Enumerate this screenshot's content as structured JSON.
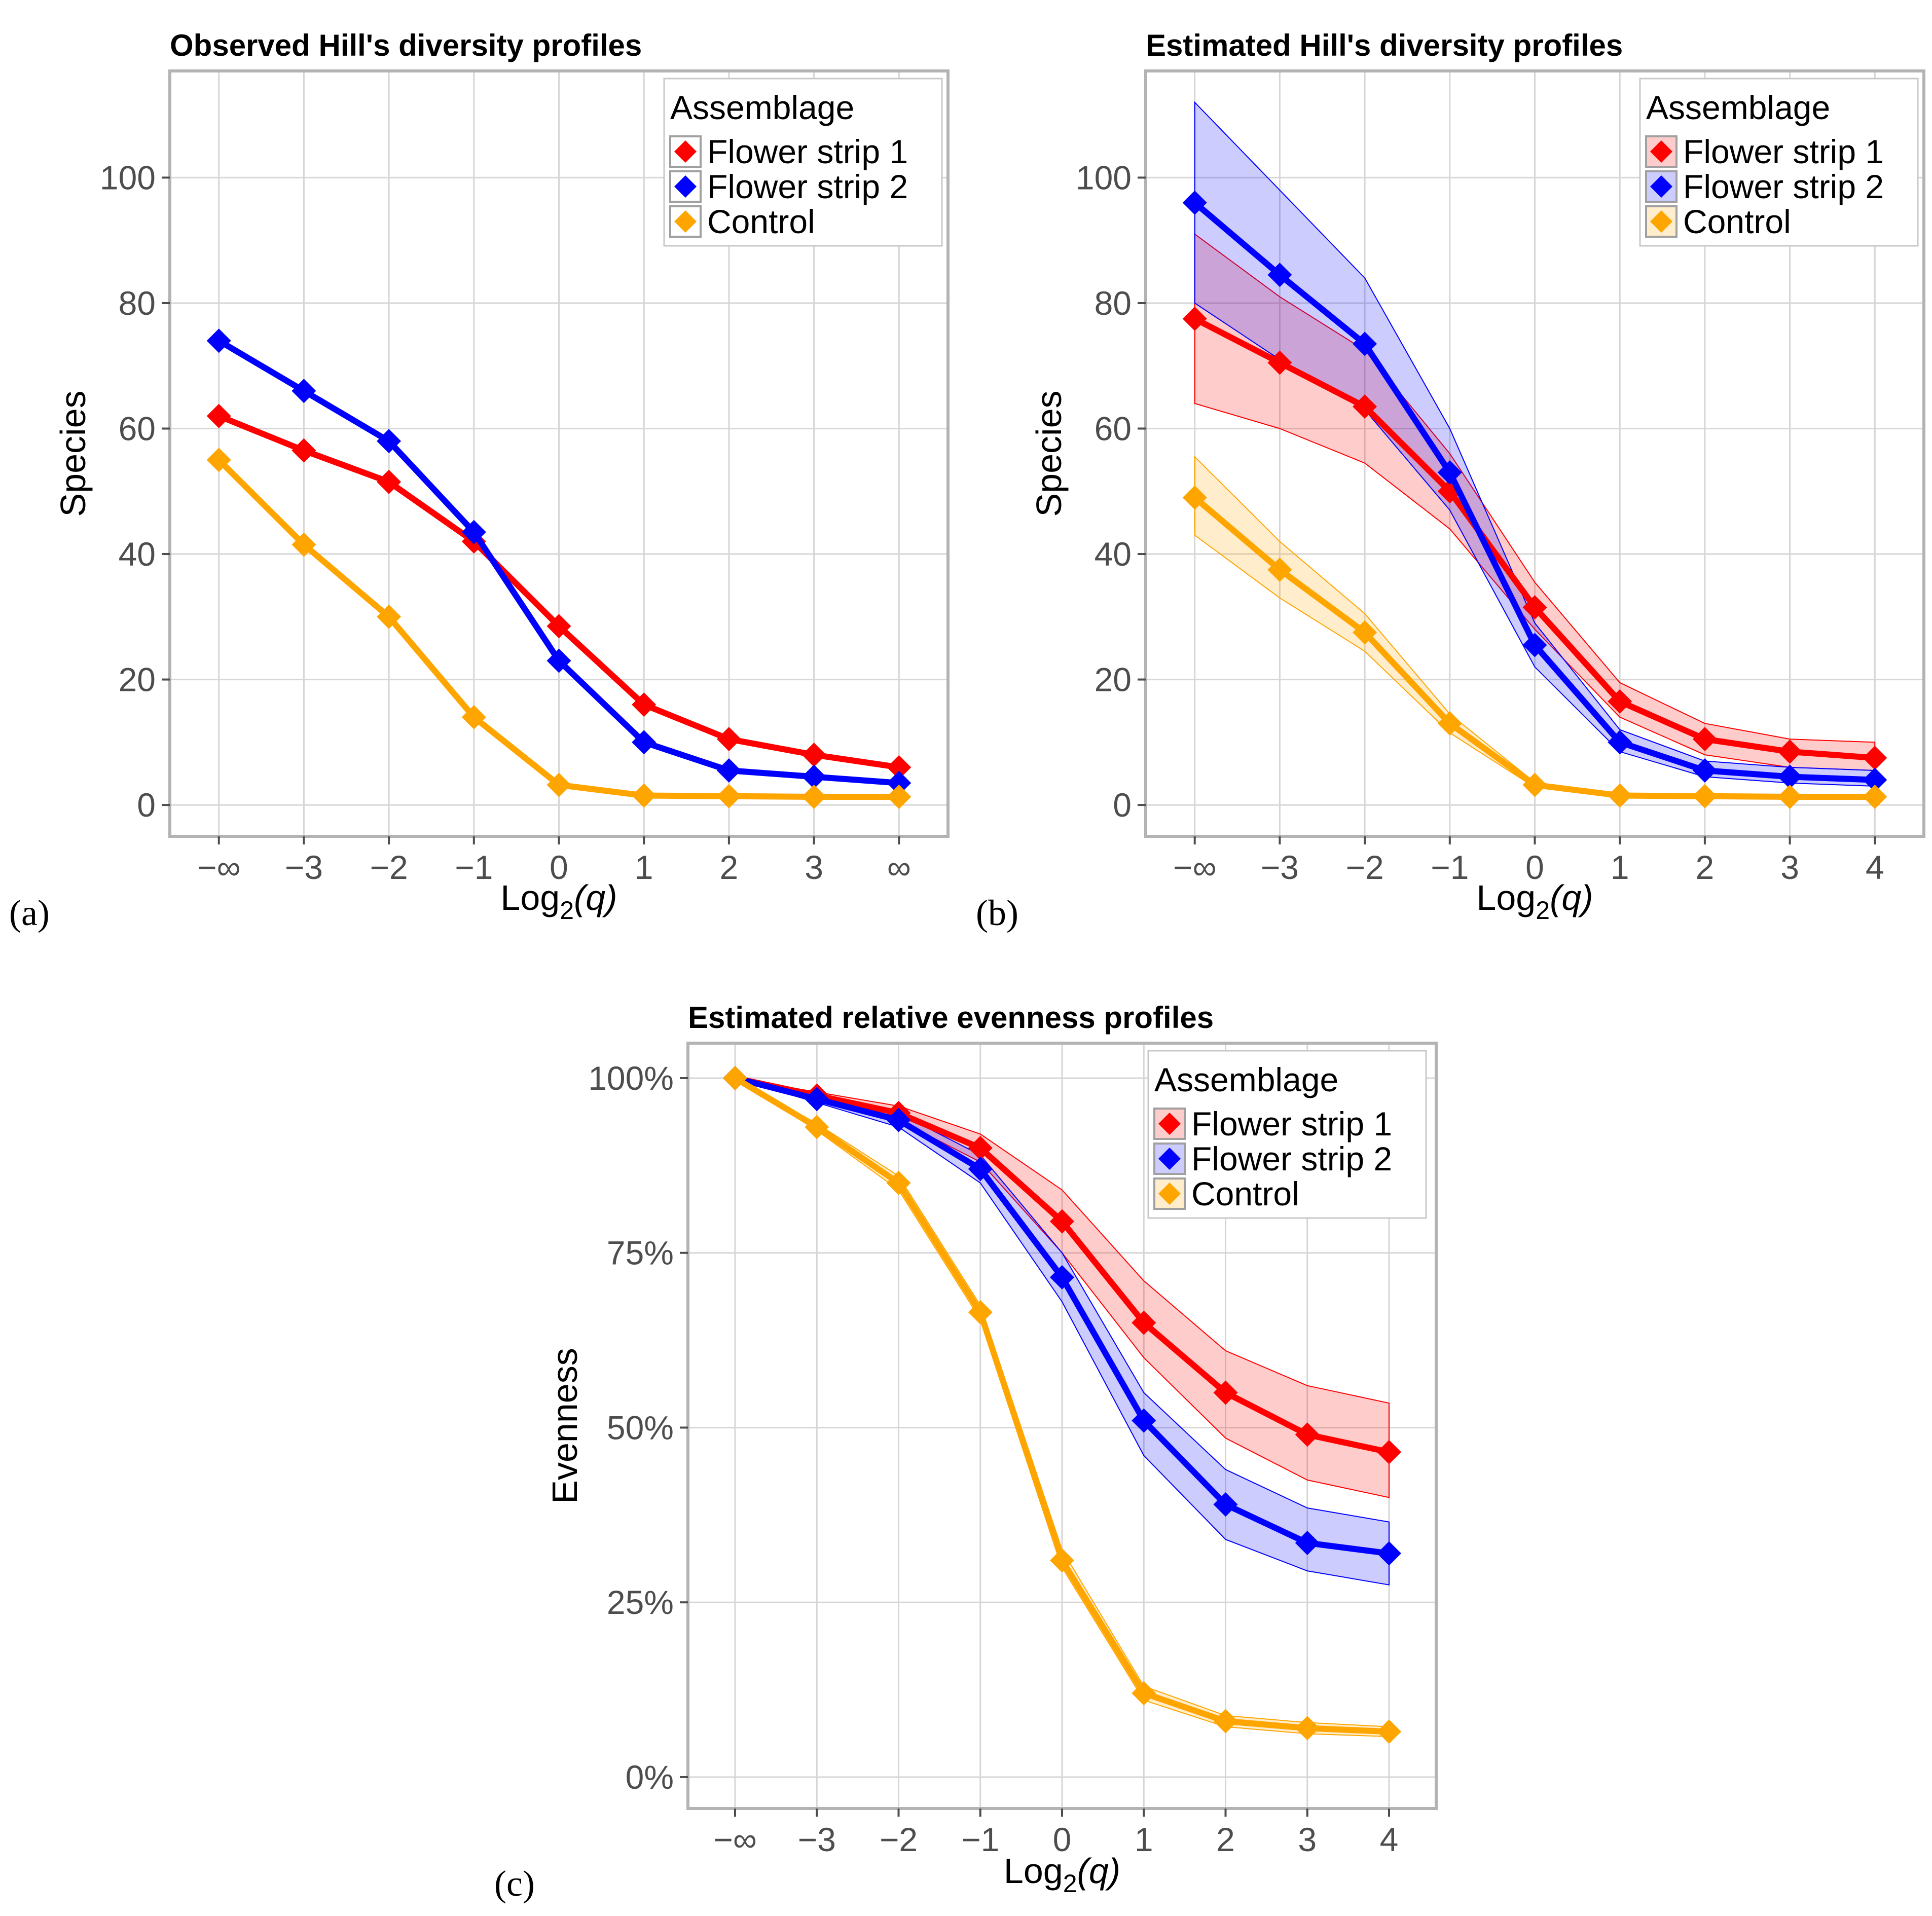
{
  "legend": {
    "title": "Assemblage",
    "entries": [
      {
        "name": "Flower strip 1",
        "color": "#ff0000"
      },
      {
        "name": "Flower strip 2",
        "color": "#0000ff"
      },
      {
        "name": "Control",
        "color": "#ffa500"
      }
    ]
  },
  "chart_data": [
    {
      "type": "line",
      "panel_label": "(a)",
      "title": "Observed Hill's diversity profiles",
      "xlabel_main": "Log",
      "xlabel_sub": "2",
      "xlabel_arg": "(q)",
      "ylabel": "Species",
      "categories": [
        "−∞",
        "−3",
        "−2",
        "−1",
        "0",
        "1",
        "2",
        "3",
        "∞"
      ],
      "yticks": [
        "0",
        "20",
        "40",
        "60",
        "80",
        "100"
      ],
      "ytick_values": [
        0,
        20,
        40,
        60,
        80,
        100
      ],
      "ylim": [
        -5,
        117
      ],
      "grid": true,
      "legend_position": "top-right",
      "series": [
        {
          "name": "Flower strip 1",
          "values": [
            62,
            56.5,
            51.5,
            42,
            28.5,
            16,
            10.5,
            8,
            6
          ]
        },
        {
          "name": "Flower strip 2",
          "values": [
            74,
            66,
            58,
            43.5,
            23,
            10,
            5.5,
            4.5,
            3.5
          ]
        },
        {
          "name": "Control",
          "values": [
            55,
            41.5,
            30,
            14,
            3.2,
            1.5,
            1.4,
            1.3,
            1.3
          ]
        }
      ]
    },
    {
      "type": "line",
      "panel_label": "(b)",
      "title": "Estimated Hill's diversity profiles",
      "xlabel_main": "Log",
      "xlabel_sub": "2",
      "xlabel_arg": "(q)",
      "ylabel": "Species",
      "categories": [
        "−∞",
        "−3",
        "−2",
        "−1",
        "0",
        "1",
        "2",
        "3",
        "4"
      ],
      "yticks": [
        "0",
        "20",
        "40",
        "60",
        "80",
        "100"
      ],
      "ytick_values": [
        0,
        20,
        40,
        60,
        80,
        100
      ],
      "ylim": [
        -5,
        117
      ],
      "grid": true,
      "legend_position": "top-right",
      "series": [
        {
          "name": "Flower strip 1",
          "values": [
            77.5,
            70.5,
            63.5,
            50,
            31.5,
            16.5,
            10.5,
            8.5,
            7.5
          ],
          "lower": [
            64,
            60,
            54.5,
            44,
            28,
            14,
            8,
            6,
            5.5
          ],
          "upper": [
            91,
            81,
            72.5,
            56,
            35.5,
            19.5,
            13,
            10.5,
            10
          ]
        },
        {
          "name": "Flower strip 2",
          "values": [
            96,
            84.5,
            73.5,
            53,
            25.5,
            10,
            5.5,
            4.5,
            4
          ],
          "lower": [
            80,
            71,
            63,
            47,
            22,
            8.5,
            4.5,
            3.5,
            3
          ],
          "upper": [
            112,
            98,
            84,
            60,
            29,
            12,
            7,
            6,
            5.5
          ]
        },
        {
          "name": "Control",
          "values": [
            49,
            37.5,
            27.5,
            13,
            3.2,
            1.5,
            1.4,
            1.3,
            1.3
          ],
          "lower": [
            43,
            33,
            24.5,
            11.5,
            2.8,
            1.3,
            1.2,
            1.1,
            1.1
          ],
          "upper": [
            55.5,
            42,
            30.5,
            14.5,
            3.6,
            1.7,
            1.6,
            1.5,
            1.5
          ]
        }
      ]
    },
    {
      "type": "line",
      "panel_label": "(c)",
      "title": "Estimated relative evenness profiles",
      "xlabel_main": "Log",
      "xlabel_sub": "2",
      "xlabel_arg": "(q)",
      "ylabel": "Evenness",
      "categories": [
        "−∞",
        "−3",
        "−2",
        "−1",
        "0",
        "1",
        "2",
        "3",
        "4"
      ],
      "yticks": [
        "0%",
        "25%",
        "50%",
        "75%",
        "100%"
      ],
      "ytick_values": [
        0,
        25,
        50,
        75,
        100
      ],
      "ylim": [
        -4.5,
        105
      ],
      "grid": true,
      "legend_position": "top-right",
      "series": [
        {
          "name": "Flower strip 1",
          "values": [
            100,
            97.5,
            95,
            90,
            79.5,
            65,
            55,
            49,
            46.5
          ],
          "lower": [
            100,
            97,
            94,
            88,
            75,
            60,
            48.5,
            42.5,
            40
          ],
          "upper": [
            100,
            98,
            96,
            92,
            84,
            71,
            61,
            56,
            53.5
          ]
        },
        {
          "name": "Flower strip 2",
          "values": [
            100,
            97,
            94,
            87,
            71.5,
            51,
            39,
            33.5,
            32
          ],
          "lower": [
            100,
            96.5,
            93,
            85,
            68,
            46,
            34,
            29.5,
            27.5
          ],
          "upper": [
            100,
            97.5,
            95,
            89,
            75,
            55,
            44,
            38.5,
            36.5
          ]
        },
        {
          "name": "Control",
          "values": [
            100,
            93,
            85,
            66.5,
            31,
            12,
            8,
            7,
            6.5
          ],
          "lower": [
            100,
            92.5,
            84,
            65.5,
            30,
            11,
            7.2,
            6.2,
            5.8
          ],
          "upper": [
            100,
            93.5,
            86,
            67.5,
            32.5,
            13,
            8.8,
            7.8,
            7.2
          ]
        }
      ]
    }
  ]
}
